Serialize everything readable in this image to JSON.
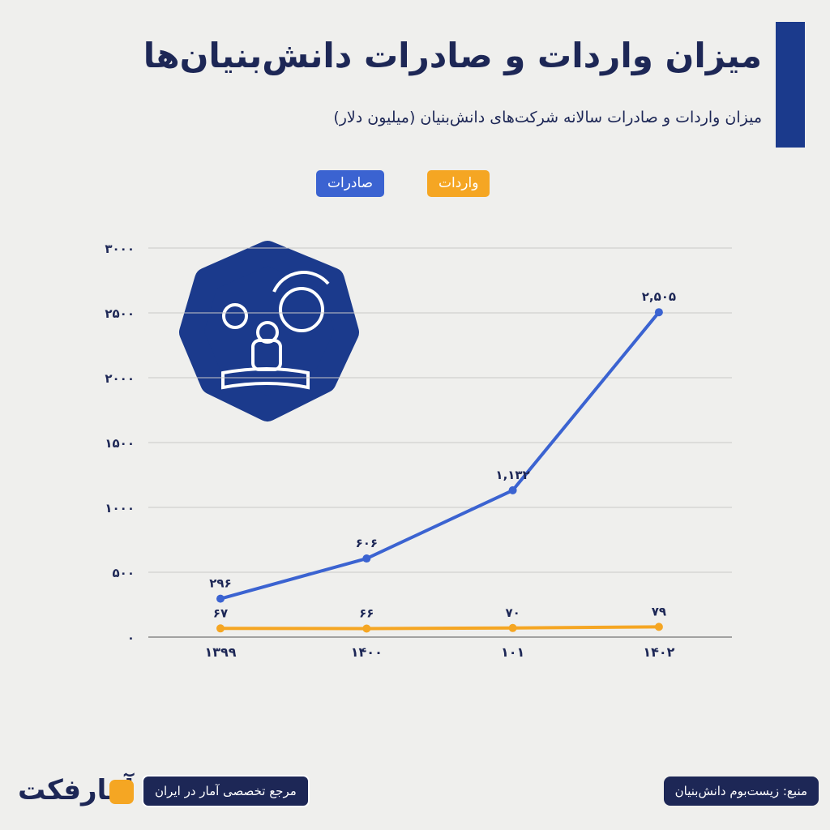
{
  "chart_data": {
    "type": "line",
    "title": "میزان واردات و صادرات دانش‌بنیان‌ها",
    "subtitle": "میزان واردات و صادرات سالانه شرکت‌های دانش‌بنیان (میلیون دلار)",
    "categories": [
      "۱۳۹۹",
      "۱۴۰۰",
      "۱۰۱",
      "۱۴۰۲"
    ],
    "series": [
      {
        "name": "صادرات",
        "color": "#3b63d1",
        "values": [
          296,
          606,
          1132,
          2505
        ],
        "value_labels": [
          "۲۹۶",
          "۶۰۶",
          "۱,۱۳۲",
          "۲,۵۰۵"
        ]
      },
      {
        "name": "واردات",
        "color": "#f5a623",
        "values": [
          67,
          66,
          70,
          79
        ],
        "value_labels": [
          "۶۷",
          "۶۶",
          "۷۰",
          "۷۹"
        ]
      }
    ],
    "ylim": [
      0,
      3000
    ],
    "yticks": [
      {
        "value": 0,
        "label": "۰"
      },
      {
        "value": 500,
        "label": "۵۰۰"
      },
      {
        "value": 1000,
        "label": "۱۰۰۰"
      },
      {
        "value": 1500,
        "label": "۱۵۰۰"
      },
      {
        "value": 2000,
        "label": "۲۰۰۰"
      },
      {
        "value": 2500,
        "label": "۲۵۰۰"
      },
      {
        "value": 3000,
        "label": "۳۰۰۰"
      }
    ],
    "grid": true,
    "source": "منبع: زیست‌بوم دانش‌بنیان",
    "tagline": "مرجع تخصصی آمار در ایران",
    "logo_text": "آمارفکت"
  }
}
